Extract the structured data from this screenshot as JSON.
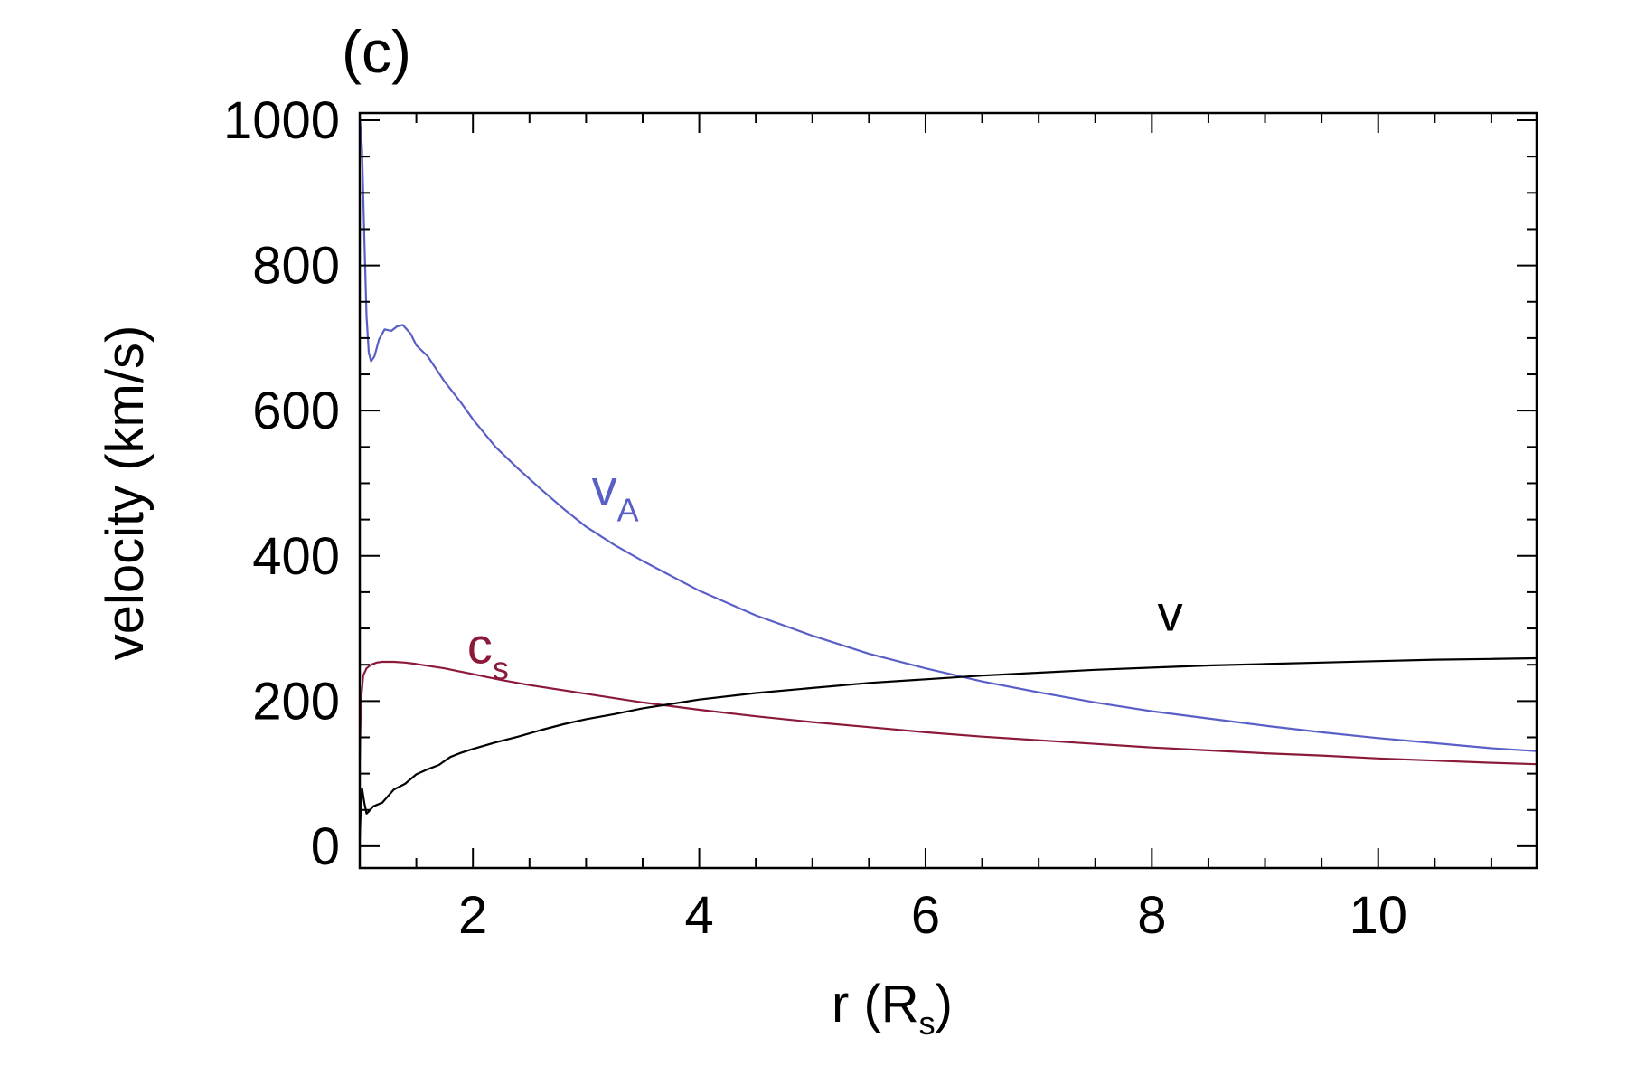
{
  "chart_data": {
    "type": "line",
    "panel_label": "(c)",
    "title": "",
    "xlabel": {
      "main": "r (R",
      "sub": "s",
      "close": ")"
    },
    "ylabel": "velocity (km/s)",
    "xlim": [
      1.0,
      11.4
    ],
    "ylim": [
      -30,
      1010
    ],
    "x_ticks": [
      2,
      4,
      6,
      8,
      10
    ],
    "x_tick_labels": [
      "2",
      "4",
      "6",
      "8",
      "10"
    ],
    "x_minor_step": 0.5,
    "y_ticks": [
      0,
      200,
      400,
      600,
      800,
      1000
    ],
    "y_tick_labels": [
      "0",
      "200",
      "400",
      "600",
      "800",
      "1000"
    ],
    "y_minor_step": 50,
    "grid": false,
    "legend": "none (series labelled inline)",
    "series": [
      {
        "name": "v_A",
        "label_main": "v",
        "label_sub": "A",
        "color": "#5a5fc8",
        "label_at": [
          3.05,
          470
        ],
        "points": [
          [
            1.0,
            1005
          ],
          [
            1.02,
            960
          ],
          [
            1.04,
            840
          ],
          [
            1.06,
            730
          ],
          [
            1.08,
            680
          ],
          [
            1.1,
            668
          ],
          [
            1.13,
            675
          ],
          [
            1.17,
            698
          ],
          [
            1.22,
            712
          ],
          [
            1.28,
            710
          ],
          [
            1.33,
            716
          ],
          [
            1.38,
            718
          ],
          [
            1.45,
            706
          ],
          [
            1.5,
            690
          ],
          [
            1.6,
            675
          ],
          [
            1.75,
            640
          ],
          [
            1.9,
            610
          ],
          [
            2.0,
            588
          ],
          [
            2.2,
            550
          ],
          [
            2.4,
            520
          ],
          [
            2.6,
            492
          ],
          [
            2.8,
            465
          ],
          [
            3.0,
            440
          ],
          [
            3.25,
            415
          ],
          [
            3.5,
            393
          ],
          [
            4.0,
            352
          ],
          [
            4.5,
            318
          ],
          [
            5.0,
            290
          ],
          [
            5.5,
            265
          ],
          [
            6.0,
            245
          ],
          [
            6.5,
            227
          ],
          [
            7.0,
            212
          ],
          [
            7.5,
            198
          ],
          [
            8.0,
            186
          ],
          [
            8.5,
            176
          ],
          [
            9.0,
            166
          ],
          [
            9.5,
            157
          ],
          [
            10.0,
            149
          ],
          [
            10.5,
            142
          ],
          [
            11.0,
            135
          ],
          [
            11.4,
            131
          ]
        ]
      },
      {
        "name": "c_s",
        "label_main": "c",
        "label_sub": "s",
        "color": "#8b1a3a",
        "label_at": [
          1.95,
          252
        ],
        "points": [
          [
            1.0,
            118
          ],
          [
            1.01,
            200
          ],
          [
            1.03,
            235
          ],
          [
            1.06,
            245
          ],
          [
            1.1,
            250
          ],
          [
            1.15,
            253
          ],
          [
            1.2,
            254
          ],
          [
            1.3,
            254
          ],
          [
            1.4,
            253
          ],
          [
            1.5,
            251
          ],
          [
            1.75,
            245
          ],
          [
            2.0,
            237
          ],
          [
            2.25,
            229
          ],
          [
            2.5,
            222
          ],
          [
            3.0,
            210
          ],
          [
            3.5,
            198
          ],
          [
            4.0,
            188
          ],
          [
            4.5,
            179
          ],
          [
            5.0,
            171
          ],
          [
            5.5,
            164
          ],
          [
            6.0,
            157
          ],
          [
            6.5,
            151
          ],
          [
            7.0,
            146
          ],
          [
            7.5,
            141
          ],
          [
            8.0,
            136
          ],
          [
            8.5,
            132
          ],
          [
            9.0,
            128
          ],
          [
            9.5,
            125
          ],
          [
            10.0,
            121
          ],
          [
            10.5,
            118
          ],
          [
            11.0,
            115
          ],
          [
            11.4,
            113
          ]
        ]
      },
      {
        "name": "v",
        "label_main": "v",
        "label_sub": "",
        "color": "#000000",
        "label_at": [
          8.05,
          297
        ],
        "points": [
          [
            1.0,
            10
          ],
          [
            1.01,
            60
          ],
          [
            1.02,
            80
          ],
          [
            1.04,
            60
          ],
          [
            1.06,
            45
          ],
          [
            1.08,
            48
          ],
          [
            1.12,
            55
          ],
          [
            1.2,
            60
          ],
          [
            1.3,
            78
          ],
          [
            1.4,
            86
          ],
          [
            1.5,
            99
          ],
          [
            1.6,
            106
          ],
          [
            1.7,
            112
          ],
          [
            1.8,
            123
          ],
          [
            1.9,
            129
          ],
          [
            2.0,
            134
          ],
          [
            2.2,
            143
          ],
          [
            2.4,
            151
          ],
          [
            2.6,
            160
          ],
          [
            2.8,
            168
          ],
          [
            3.0,
            175
          ],
          [
            3.25,
            182
          ],
          [
            3.5,
            190
          ],
          [
            4.0,
            202
          ],
          [
            4.5,
            211
          ],
          [
            5.0,
            218
          ],
          [
            5.5,
            225
          ],
          [
            6.0,
            230
          ],
          [
            6.5,
            235
          ],
          [
            7.0,
            239
          ],
          [
            7.5,
            243
          ],
          [
            8.0,
            246
          ],
          [
            8.5,
            249
          ],
          [
            9.0,
            251
          ],
          [
            9.5,
            253
          ],
          [
            10.0,
            255
          ],
          [
            10.5,
            257
          ],
          [
            11.0,
            258
          ],
          [
            11.4,
            259
          ]
        ]
      }
    ]
  }
}
